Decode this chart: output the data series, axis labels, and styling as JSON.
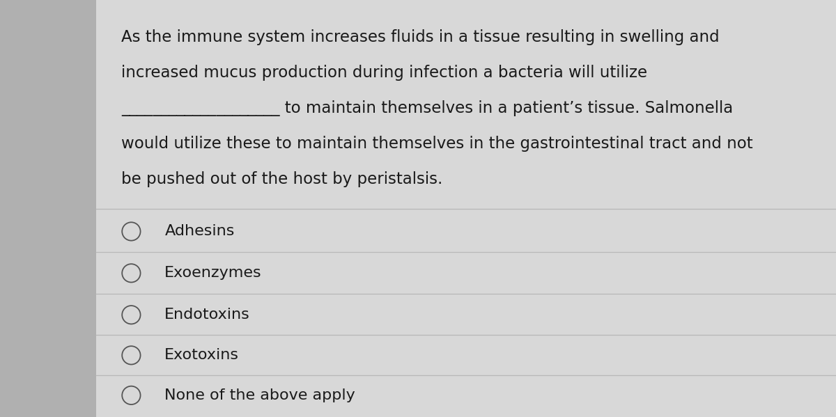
{
  "background_color": "#d8d8d8",
  "card_color": "#e8e8e8",
  "text_color": "#1a1a1a",
  "left_bar_color": "#b0b0b0",
  "question_lines": [
    "As the immune system increases fluids in a tissue resulting in swelling and",
    "increased mucus production during infection a bacteria will utilize",
    "____________________ to maintain themselves in a patient’s tissue. Salmonella",
    "would utilize these to maintain themselves in the gastrointestinal tract and not",
    "be pushed out of the host by peristalsis."
  ],
  "options": [
    "Adhesins",
    "Exoenzymes",
    "Endotoxins",
    "Exotoxins",
    "None of the above apply"
  ],
  "divider_color": "#b8b8b8",
  "font_size_question": 16.5,
  "font_size_options": 16.0,
  "circle_color": "#555555",
  "left_bar_width": 0.115
}
